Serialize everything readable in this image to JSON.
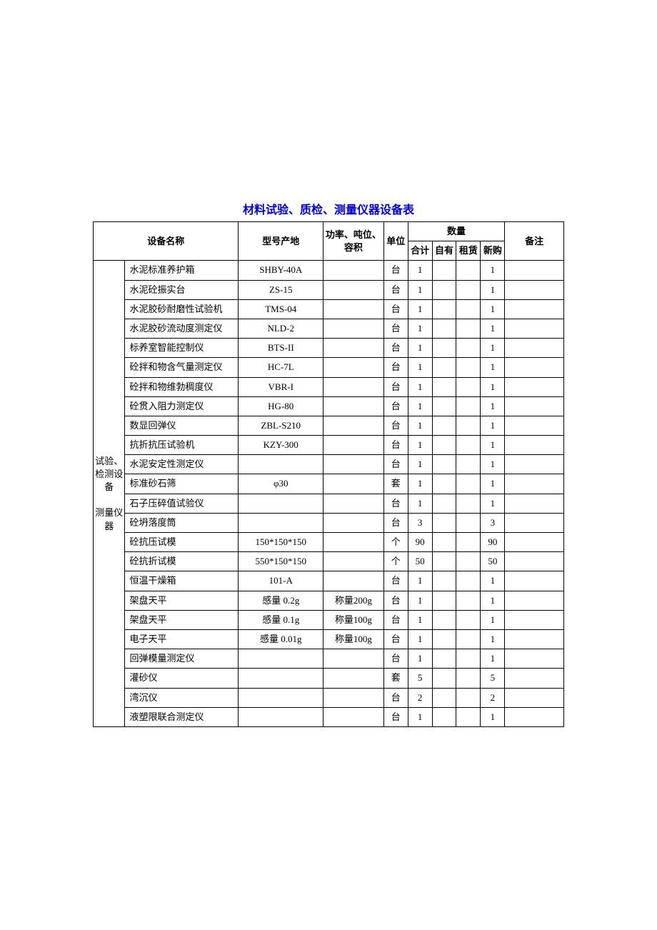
{
  "title": "材料试验、质检、测量仪器设备表",
  "title_color": "#0000cc",
  "headers": {
    "name": "设备名称",
    "model": "型号产地",
    "spec": "功率、吨位、容积",
    "unit": "单位",
    "qty_group": "数量",
    "qty_total": "合计",
    "qty_own": "自有",
    "qty_rent": "租赁",
    "qty_new": "新购",
    "note": "备注"
  },
  "category_label": "试验、检测设备\n\n测量仪器",
  "rows": [
    {
      "name": "水泥标准养护箱",
      "model": "SHBY-40A",
      "spec": "",
      "unit": "台",
      "total": "1",
      "own": "",
      "rent": "",
      "new": "1",
      "note": ""
    },
    {
      "name": "水泥砼振实台",
      "model": "ZS-15",
      "spec": "",
      "unit": "台",
      "total": "1",
      "own": "",
      "rent": "",
      "new": "1",
      "note": ""
    },
    {
      "name": "水泥胶砂耐磨性试验机",
      "model": "TMS-04",
      "spec": "",
      "unit": "台",
      "total": "1",
      "own": "",
      "rent": "",
      "new": "1",
      "note": ""
    },
    {
      "name": "水泥胶砂流动度测定仪",
      "model": "NLD-2",
      "spec": "",
      "unit": "台",
      "total": "1",
      "own": "",
      "rent": "",
      "new": "1",
      "note": ""
    },
    {
      "name": "标养室智能控制仪",
      "model": "BTS-II",
      "spec": "",
      "unit": "台",
      "total": "1",
      "own": "",
      "rent": "",
      "new": "1",
      "note": ""
    },
    {
      "name": "砼拌和物含气量测定仪",
      "model": "HC-7L",
      "spec": "",
      "unit": "台",
      "total": "1",
      "own": "",
      "rent": "",
      "new": "1",
      "note": ""
    },
    {
      "name": "砼拌和物维勃稠度仪",
      "model": "VBR-I",
      "spec": "",
      "unit": "台",
      "total": "1",
      "own": "",
      "rent": "",
      "new": "1",
      "note": ""
    },
    {
      "name": "砼贯入阻力测定仪",
      "model": "HG-80",
      "spec": "",
      "unit": "台",
      "total": "1",
      "own": "",
      "rent": "",
      "new": "1",
      "note": ""
    },
    {
      "name": "数显回弹仪",
      "model": "ZBL-S210",
      "spec": "",
      "unit": "台",
      "total": "1",
      "own": "",
      "rent": "",
      "new": "1",
      "note": ""
    },
    {
      "name": "抗折抗压试验机",
      "model": "KZY-300",
      "spec": "",
      "unit": "台",
      "total": "1",
      "own": "",
      "rent": "",
      "new": "1",
      "note": ""
    },
    {
      "name": "水泥安定性测定仪",
      "model": "",
      "spec": "",
      "unit": "台",
      "total": "1",
      "own": "",
      "rent": "",
      "new": "1",
      "note": ""
    },
    {
      "name": "标准砂石筛",
      "model": "φ30",
      "spec": "",
      "unit": "套",
      "total": "1",
      "own": "",
      "rent": "",
      "new": "1",
      "note": ""
    },
    {
      "name": "石子压碎值试验仪",
      "model": "",
      "spec": "",
      "unit": "台",
      "total": "1",
      "own": "",
      "rent": "",
      "new": "1",
      "note": ""
    },
    {
      "name": "砼坍落度筒",
      "model": "",
      "spec": "",
      "unit": "台",
      "total": "3",
      "own": "",
      "rent": "",
      "new": "3",
      "note": ""
    },
    {
      "name": "砼抗压试模",
      "model": "150*150*150",
      "spec": "",
      "unit": "个",
      "total": "90",
      "own": "",
      "rent": "",
      "new": "90",
      "note": ""
    },
    {
      "name": "砼抗折试模",
      "model": "550*150*150",
      "spec": "",
      "unit": "个",
      "total": "50",
      "own": "",
      "rent": "",
      "new": "50",
      "note": ""
    },
    {
      "name": "恒温干燥箱",
      "model": "101-A",
      "spec": "",
      "unit": "台",
      "total": "1",
      "own": "",
      "rent": "",
      "new": "1",
      "note": ""
    },
    {
      "name": "架盘天平",
      "model": "感量 0.2g",
      "spec": "称量200g",
      "unit": "台",
      "total": "1",
      "own": "",
      "rent": "",
      "new": "1",
      "note": ""
    },
    {
      "name": "架盘天平",
      "model": "感量 0.1g",
      "spec": "称量100g",
      "unit": "台",
      "total": "1",
      "own": "",
      "rent": "",
      "new": "1",
      "note": ""
    },
    {
      "name": "电子天平",
      "model": "感量 0.01g",
      "spec": "称量100g",
      "unit": "台",
      "total": "1",
      "own": "",
      "rent": "",
      "new": "1",
      "note": ""
    },
    {
      "name": "回弹模量测定仪",
      "model": "",
      "spec": "",
      "unit": "台",
      "total": "1",
      "own": "",
      "rent": "",
      "new": "1",
      "note": ""
    },
    {
      "name": "灌砂仪",
      "model": "",
      "spec": "",
      "unit": "套",
      "total": "5",
      "own": "",
      "rent": "",
      "new": "5",
      "note": ""
    },
    {
      "name": "湾沉仪",
      "model": "",
      "spec": "",
      "unit": "台",
      "total": "2",
      "own": "",
      "rent": "",
      "new": "2",
      "note": ""
    },
    {
      "name": "液塑限联合测定仪",
      "model": "",
      "spec": "",
      "unit": "台",
      "total": "1",
      "own": "",
      "rent": "",
      "new": "1",
      "note": ""
    }
  ]
}
